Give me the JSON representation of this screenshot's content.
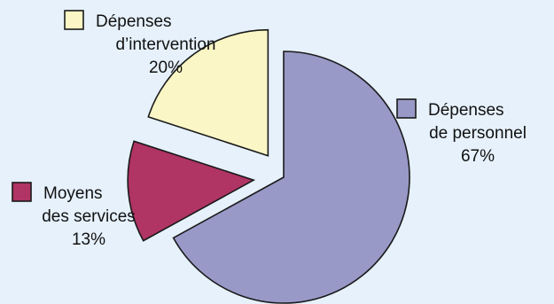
{
  "chart_data": {
    "type": "pie",
    "slices": [
      {
        "label_lines": [
          "Dépenses",
          "de personnel"
        ],
        "value": 67,
        "value_text": "67%",
        "color": "#9999c8"
      },
      {
        "label_lines": [
          "Moyens",
          "des services"
        ],
        "value": 13,
        "value_text": "13%",
        "color": "#b03464"
      },
      {
        "label_lines": [
          "Dépenses",
          "d’intervention"
        ],
        "value": 20,
        "value_text": "20%",
        "color": "#fbf6c5"
      }
    ]
  }
}
